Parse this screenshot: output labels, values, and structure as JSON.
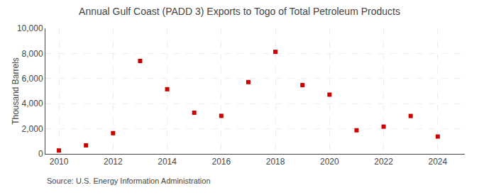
{
  "chart_data": {
    "type": "scatter",
    "title": "Annual Gulf Coast (PADD 3) Exports to Togo of Total Petroleum Products",
    "ylabel": "Thousand Barrels",
    "annotations": [
      "Source: U.S. Energy Information Administration"
    ],
    "x": [
      2010,
      2011,
      2012,
      2013,
      2014,
      2015,
      2016,
      2017,
      2018,
      2019,
      2020,
      2021,
      2022,
      2023,
      2024
    ],
    "values": [
      270,
      680,
      1650,
      7400,
      5150,
      3280,
      3030,
      5720,
      8130,
      5480,
      4720,
      1880,
      2170,
      3020,
      1380
    ],
    "color": "#cc0000",
    "marker": "square",
    "xlim": [
      2009.5,
      2025.0
    ],
    "xticks": [
      2010,
      2012,
      2014,
      2016,
      2018,
      2020,
      2022,
      2024
    ],
    "ylim": [
      0,
      10000
    ],
    "yticks": [
      0,
      {
        "value": 2000,
        "label": "2,000"
      },
      {
        "value": 4000,
        "label": "4,000"
      },
      {
        "value": 6000,
        "label": "6,000"
      },
      {
        "value": 8000,
        "label": "8,000"
      },
      {
        "value": 10000,
        "label": "10,000"
      }
    ],
    "grid": true
  }
}
